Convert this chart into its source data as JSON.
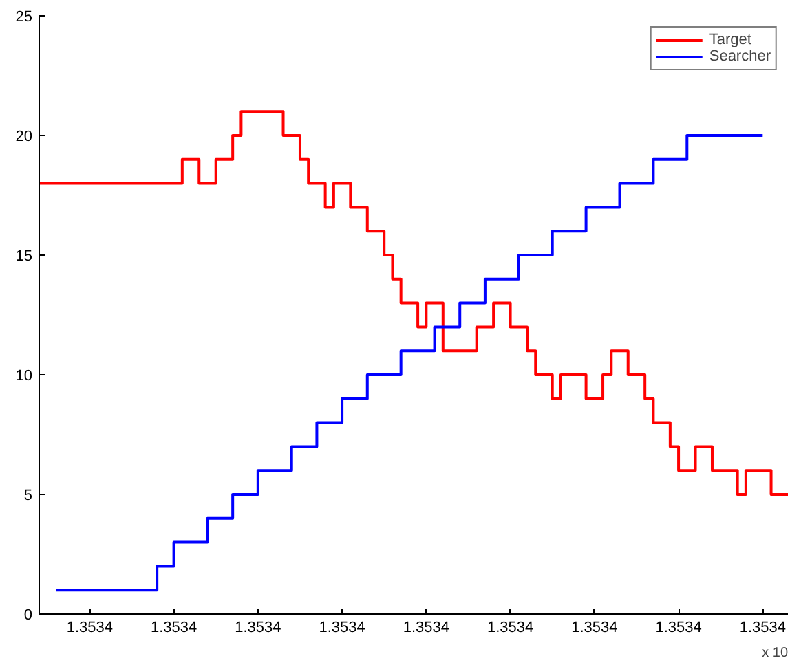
{
  "chart_data": {
    "type": "step",
    "ylim": [
      0,
      25
    ],
    "categories": [
      null,
      null,
      null,
      null,
      null,
      null,
      "1.3534",
      null,
      null,
      null,
      null,
      null,
      null,
      null,
      null,
      null,
      "1.3534",
      null,
      null,
      null,
      null,
      null,
      null,
      null,
      null,
      null,
      "1.3534",
      null,
      null,
      null,
      null,
      null,
      null,
      null,
      null,
      null,
      "1.3534",
      null,
      null,
      null,
      null,
      null,
      null,
      null,
      null,
      null,
      "1.3534",
      null,
      null,
      null,
      null,
      null,
      null,
      null,
      null,
      null,
      "1.3534",
      null,
      null,
      null,
      null,
      null,
      null,
      null,
      null,
      null,
      "1.3534",
      null,
      null,
      null,
      null,
      null,
      null,
      null,
      null,
      null,
      "1.3534",
      null,
      null,
      null,
      null,
      null,
      null,
      null,
      null,
      null,
      "1.3534",
      null,
      null,
      null
    ],
    "yticks": [
      0,
      5,
      10,
      15,
      20,
      25
    ],
    "grid": false,
    "legend": "top right",
    "line_style": "solid",
    "annotations": [
      "x 10"
    ],
    "series": [
      {
        "name": "Target",
        "color": "#ff0000",
        "values": [
          18,
          18,
          18,
          18,
          18,
          18,
          18,
          18,
          18,
          18,
          18,
          18,
          18,
          18,
          18,
          18,
          18,
          19,
          19,
          18,
          18,
          19,
          19,
          20,
          21,
          21,
          21,
          21,
          21,
          20,
          20,
          19,
          18,
          18,
          17,
          18,
          18,
          17,
          17,
          16,
          16,
          15,
          14,
          13,
          13,
          12,
          13,
          13,
          11,
          11,
          11,
          11,
          12,
          12,
          13,
          13,
          12,
          12,
          11,
          10,
          10,
          9,
          10,
          10,
          10,
          9,
          9,
          10,
          11,
          11,
          10,
          10,
          9,
          8,
          8,
          7,
          6,
          6,
          7,
          7,
          6,
          6,
          6,
          5,
          6,
          6,
          6,
          5,
          5,
          5
        ]
      },
      {
        "name": "Searcher",
        "color": "#0000ff",
        "values": [
          null,
          null,
          1,
          1,
          1,
          1,
          1,
          1,
          1,
          1,
          1,
          1,
          1,
          1,
          2,
          2,
          3,
          3,
          3,
          3,
          4,
          4,
          4,
          5,
          5,
          5,
          6,
          6,
          6,
          6,
          7,
          7,
          7,
          8,
          8,
          8,
          9,
          9,
          9,
          10,
          10,
          10,
          10,
          11,
          11,
          11,
          11,
          12,
          12,
          12,
          13,
          13,
          13,
          14,
          14,
          14,
          14,
          15,
          15,
          15,
          15,
          16,
          16,
          16,
          16,
          17,
          17,
          17,
          17,
          18,
          18,
          18,
          18,
          19,
          19,
          19,
          19,
          20,
          20,
          20,
          20,
          20,
          20,
          20,
          20,
          20,
          20,
          null,
          null,
          null
        ]
      }
    ]
  }
}
